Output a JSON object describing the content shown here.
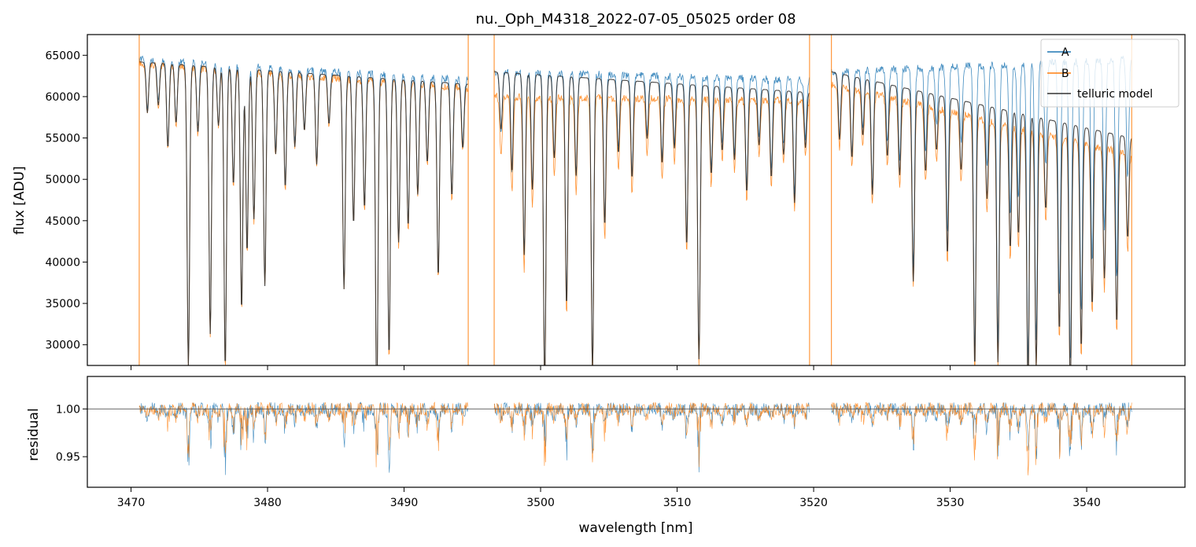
{
  "chart_data": [
    {
      "type": "line",
      "title": "nu._Oph_M4318_2022-07-05_05025  order 08",
      "xlabel": "",
      "ylabel": "flux [ADU]",
      "xlim": [
        3466.8,
        3547.2
      ],
      "ylim": [
        27500,
        67500
      ],
      "xticks": [
        3470,
        3480,
        3490,
        3500,
        3510,
        3520,
        3530,
        3540
      ],
      "yticks": [
        30000,
        35000,
        40000,
        45000,
        50000,
        55000,
        60000,
        65000
      ],
      "yticklabels": [
        "30000",
        "35000",
        "40000",
        "45000",
        "50000",
        "55000",
        "60000",
        "65000"
      ],
      "segments": [
        {
          "x0": 3470.6,
          "x1": 3494.7,
          "a_level": [
            64500,
            62000
          ],
          "b_level": [
            64000,
            61000
          ],
          "model_level": [
            64200,
            61500
          ]
        },
        {
          "x0": 3496.6,
          "x1": 3519.7,
          "a_level": [
            63000,
            62000
          ],
          "b_level": [
            60000,
            59500
          ],
          "model_level": [
            63000,
            60500
          ]
        },
        {
          "x0": 3521.3,
          "x1": 3543.3,
          "a_level": [
            63000,
            64500
          ],
          "b_level": [
            61500,
            53000
          ],
          "model_level": [
            63000,
            55000
          ]
        }
      ],
      "gap_edges": [
        3470.6,
        3494.7,
        3496.6,
        3519.7,
        3521.3,
        3543.3
      ],
      "absorption_lines": [
        [
          3471.2,
          6000
        ],
        [
          3472.0,
          5000
        ],
        [
          3472.7,
          10000
        ],
        [
          3473.3,
          7000
        ],
        [
          3474.2,
          36000
        ],
        [
          3474.9,
          8000
        ],
        [
          3475.8,
          32000
        ],
        [
          3476.4,
          7000
        ],
        [
          3476.9,
          36000
        ],
        [
          3477.5,
          14000
        ],
        [
          3478.1,
          29000
        ],
        [
          3478.5,
          22000
        ],
        [
          3479.0,
          18000
        ],
        [
          3479.8,
          26000
        ],
        [
          3480.6,
          10000
        ],
        [
          3481.3,
          14000
        ],
        [
          3482.0,
          9000
        ],
        [
          3482.7,
          7000
        ],
        [
          3483.6,
          11000
        ],
        [
          3484.5,
          6000
        ],
        [
          3485.6,
          26000
        ],
        [
          3486.3,
          18000
        ],
        [
          3487.1,
          16000
        ],
        [
          3488.0,
          40000
        ],
        [
          3488.9,
          34000
        ],
        [
          3489.6,
          20000
        ],
        [
          3490.3,
          18000
        ],
        [
          3491.0,
          14000
        ],
        [
          3491.7,
          10000
        ],
        [
          3492.5,
          24000
        ],
        [
          3493.5,
          14000
        ],
        [
          3494.3,
          8000
        ],
        [
          3497.1,
          7000
        ],
        [
          3497.9,
          12000
        ],
        [
          3498.8,
          22000
        ],
        [
          3499.4,
          14000
        ],
        [
          3500.3,
          38000
        ],
        [
          3501.0,
          10000
        ],
        [
          3501.9,
          28000
        ],
        [
          3502.6,
          12000
        ],
        [
          3503.8,
          36000
        ],
        [
          3504.7,
          18000
        ],
        [
          3505.7,
          9000
        ],
        [
          3506.7,
          12000
        ],
        [
          3507.8,
          7000
        ],
        [
          3508.9,
          10000
        ],
        [
          3509.8,
          8000
        ],
        [
          3510.7,
          20000
        ],
        [
          3511.6,
          34000
        ],
        [
          3512.5,
          11000
        ],
        [
          3513.3,
          8000
        ],
        [
          3514.2,
          9000
        ],
        [
          3515.1,
          13000
        ],
        [
          3516.0,
          7000
        ],
        [
          3516.9,
          11000
        ],
        [
          3517.8,
          8000
        ],
        [
          3518.6,
          14000
        ],
        [
          3519.4,
          7000
        ],
        [
          3521.9,
          8000
        ],
        [
          3522.8,
          10000
        ],
        [
          3523.6,
          7000
        ],
        [
          3524.3,
          14000
        ],
        [
          3525.4,
          9000
        ],
        [
          3526.3,
          11000
        ],
        [
          3527.3,
          24000
        ],
        [
          3528.2,
          10000
        ],
        [
          3529.0,
          7000
        ],
        [
          3529.8,
          20000
        ],
        [
          3530.8,
          9000
        ],
        [
          3531.8,
          34000
        ],
        [
          3532.7,
          12000
        ],
        [
          3533.5,
          33000
        ],
        [
          3534.4,
          18000
        ],
        [
          3535.0,
          16000
        ],
        [
          3535.7,
          36000
        ],
        [
          3536.3,
          33000
        ],
        [
          3537.0,
          12000
        ],
        [
          3538.0,
          28000
        ],
        [
          3538.8,
          36000
        ],
        [
          3539.6,
          30000
        ],
        [
          3540.4,
          24000
        ],
        [
          3541.3,
          20000
        ],
        [
          3542.2,
          26000
        ],
        [
          3543.0,
          14000
        ]
      ],
      "series": [
        {
          "name": "A",
          "color": "#1f77b4"
        },
        {
          "name": "B",
          "color": "#ff7f0e"
        },
        {
          "name": "telluric model",
          "color": "#333333"
        }
      ],
      "legend": {
        "position": "top-right",
        "entries": [
          "A",
          "B",
          "telluric model"
        ]
      }
    },
    {
      "type": "line",
      "xlabel": "wavelength [nm]",
      "ylabel": "residual",
      "xlim": [
        3466.8,
        3547.2
      ],
      "ylim": [
        0.918,
        1.034
      ],
      "reference_line": 1.0,
      "xticks": [
        3470,
        3480,
        3490,
        3500,
        3510,
        3520,
        3530,
        3540
      ],
      "xticklabels": [
        "3470",
        "3480",
        "3490",
        "3500",
        "3510",
        "3520",
        "3530",
        "3540"
      ],
      "yticks": [
        0.95,
        1.0
      ],
      "yticklabels": [
        "0.95",
        "1.00"
      ],
      "series": [
        {
          "name": "A",
          "color": "#1f77b4"
        },
        {
          "name": "B",
          "color": "#ff7f0e"
        }
      ]
    }
  ]
}
